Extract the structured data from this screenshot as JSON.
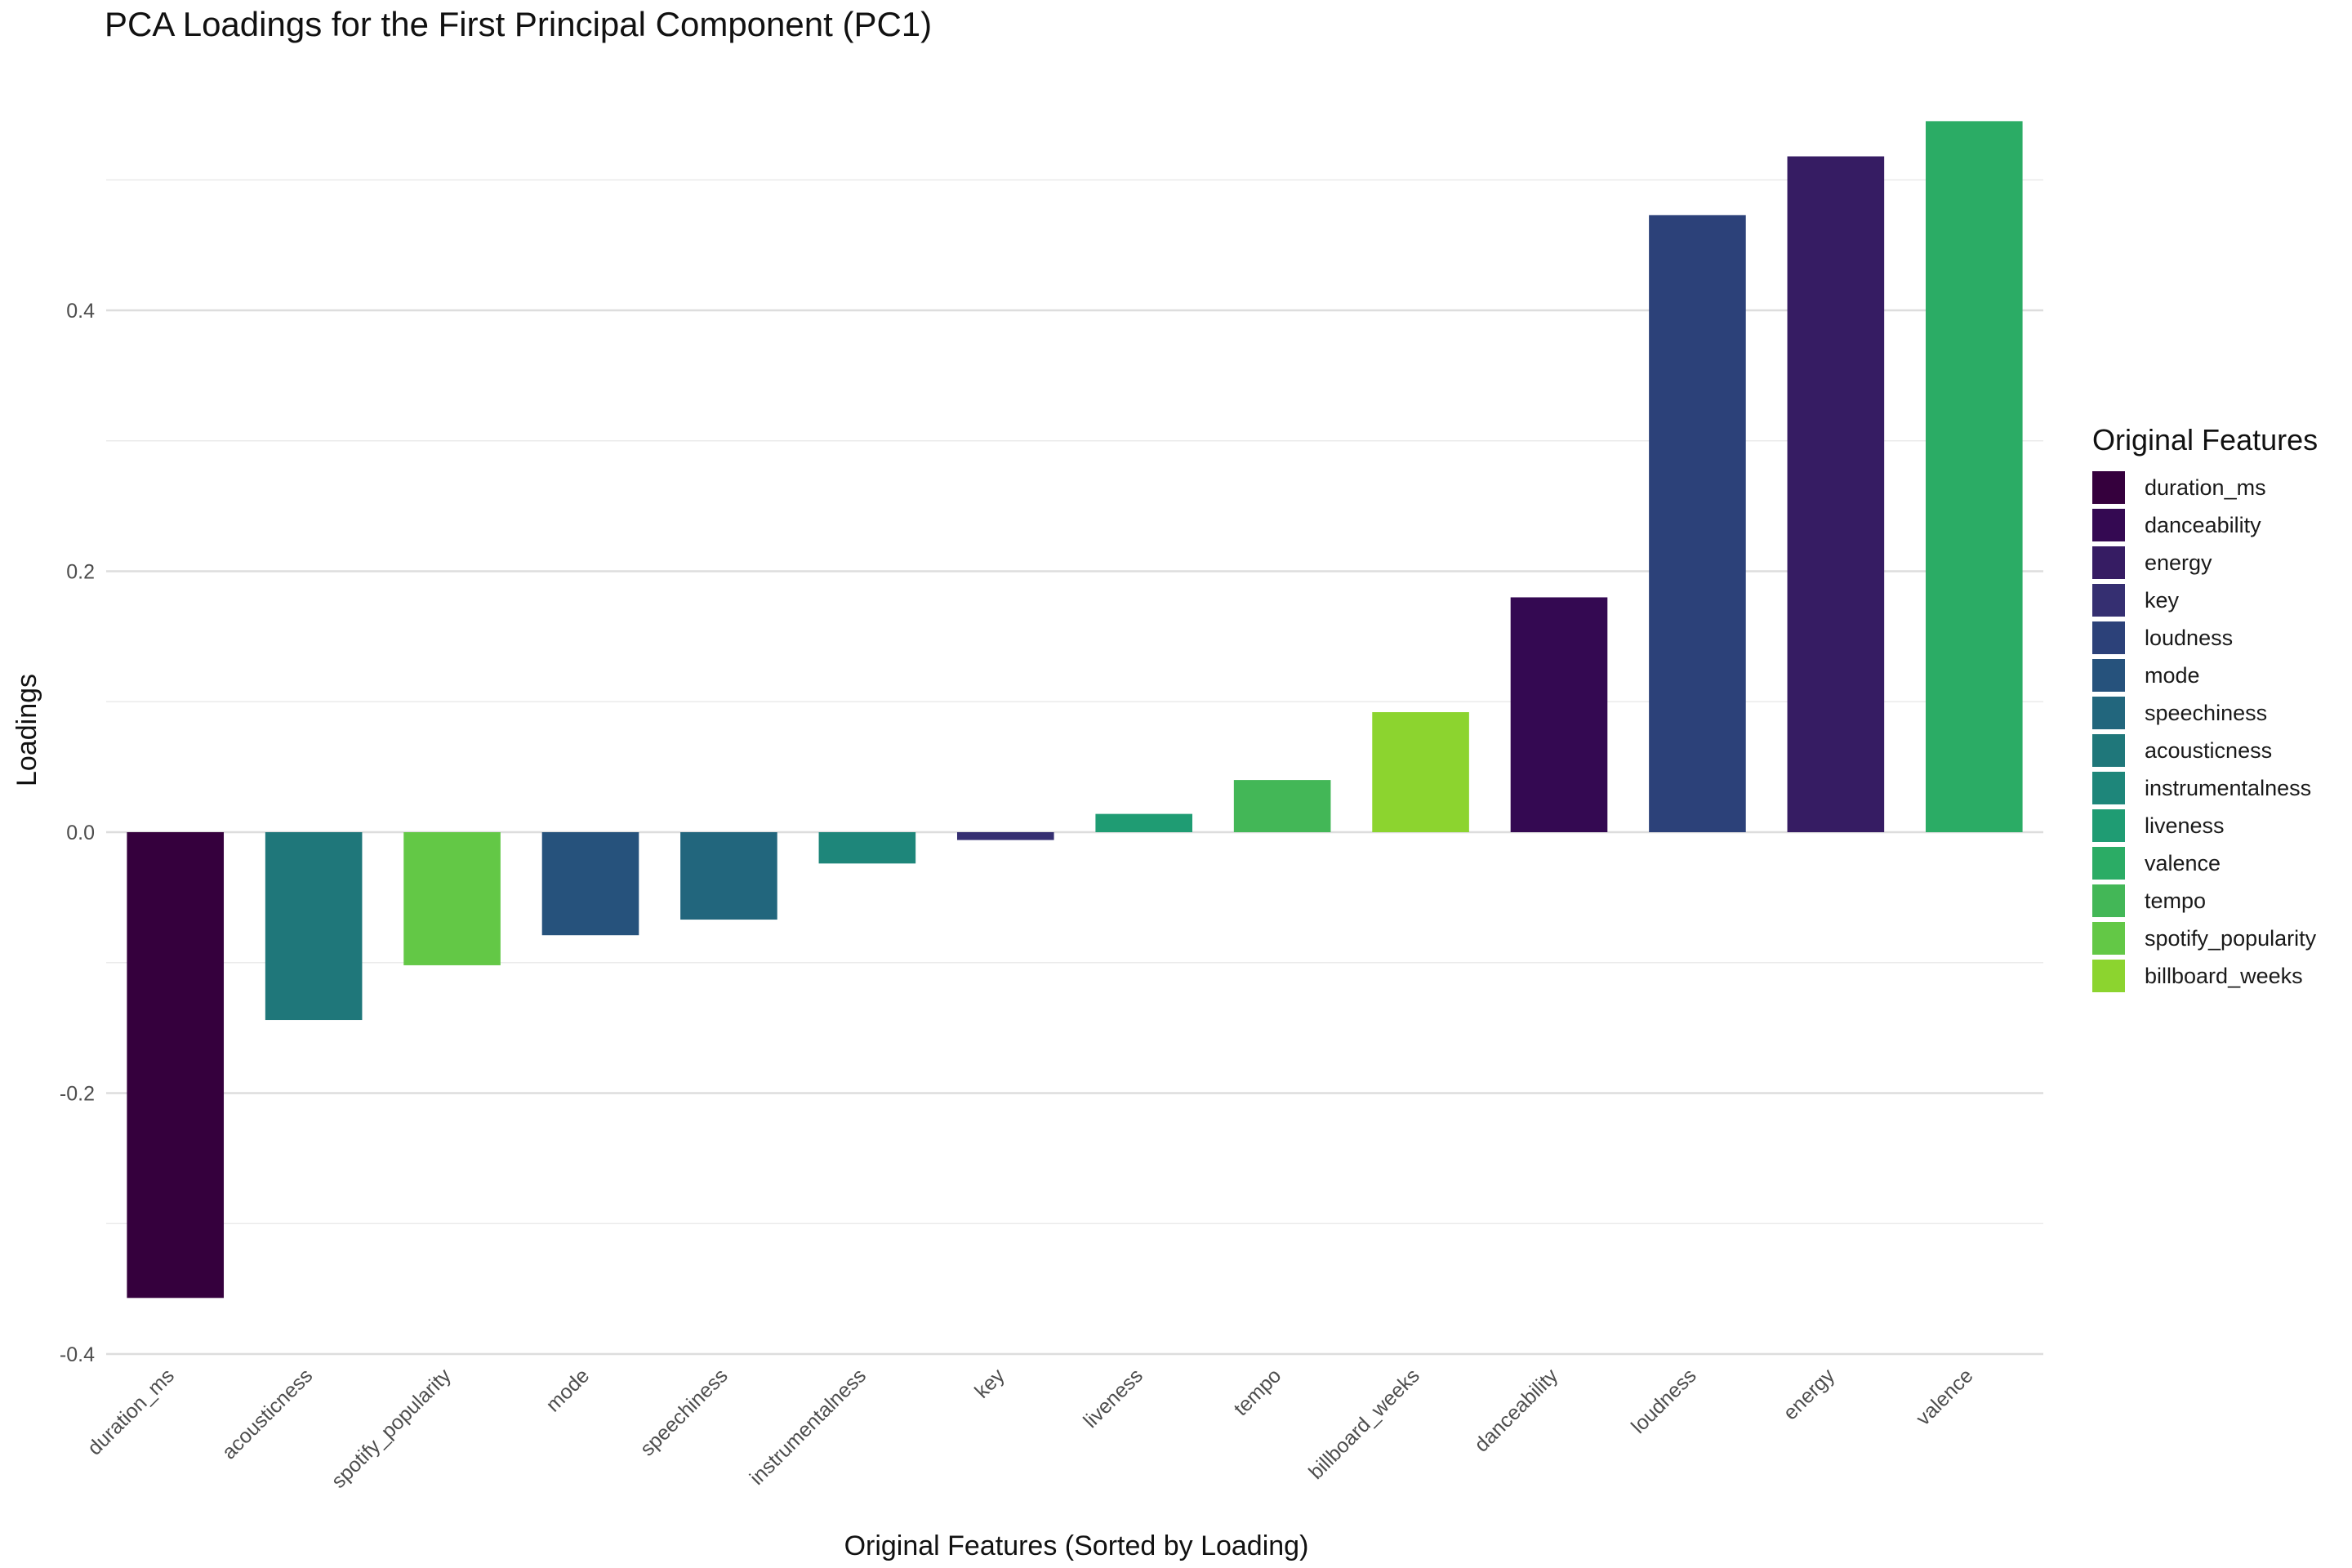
{
  "chart_data": {
    "type": "bar",
    "title": "PCA Loadings for the First Principal Component (PC1)",
    "xlabel": "Original Features (Sorted by Loading)",
    "ylabel": "Loadings",
    "ylim": [
      -0.4,
      0.56
    ],
    "y_ticks": [
      "-0.4",
      "-0.2",
      "0.0",
      "0.2",
      "0.4"
    ],
    "y_tick_values": [
      -0.4,
      -0.2,
      0.0,
      0.2,
      0.4
    ],
    "y_minor_grid_values": [
      -0.3,
      -0.1,
      0.1,
      0.3,
      0.5
    ],
    "grid": true,
    "legend_position": "right",
    "legend_title": "Original Features",
    "categories": [
      "duration_ms",
      "acousticness",
      "spotify_popularity",
      "mode",
      "speechiness",
      "instrumentalness",
      "key",
      "liveness",
      "tempo",
      "billboard_weeks",
      "danceability",
      "loudness",
      "energy",
      "valence"
    ],
    "values": [
      -0.357,
      -0.144,
      -0.102,
      -0.079,
      -0.067,
      -0.024,
      -0.006,
      0.014,
      0.04,
      0.092,
      0.18,
      0.473,
      0.518,
      0.545
    ],
    "bar_colors": [
      "#35003d",
      "#1f777a",
      "#63c846",
      "#26527c",
      "#22667d",
      "#1e867a",
      "#352f71",
      "#1f9c73",
      "#43b757",
      "#8cd42f",
      "#340952",
      "#2c4179",
      "#361c63",
      "#2bac65"
    ],
    "legend": [
      {
        "label": "duration_ms",
        "color": "#35003d"
      },
      {
        "label": "danceability",
        "color": "#340952"
      },
      {
        "label": "energy",
        "color": "#361c63"
      },
      {
        "label": "key",
        "color": "#352f71"
      },
      {
        "label": "loudness",
        "color": "#2c4179"
      },
      {
        "label": "mode",
        "color": "#26527c"
      },
      {
        "label": "speechiness",
        "color": "#22667d"
      },
      {
        "label": "acousticness",
        "color": "#1f777a"
      },
      {
        "label": "instrumentalness",
        "color": "#1e867a"
      },
      {
        "label": "liveness",
        "color": "#1f9c73"
      },
      {
        "label": "valence",
        "color": "#2bac65"
      },
      {
        "label": "tempo",
        "color": "#43b757"
      },
      {
        "label": "spotify_popularity",
        "color": "#63c846"
      },
      {
        "label": "billboard_weeks",
        "color": "#8cd42f"
      }
    ]
  }
}
